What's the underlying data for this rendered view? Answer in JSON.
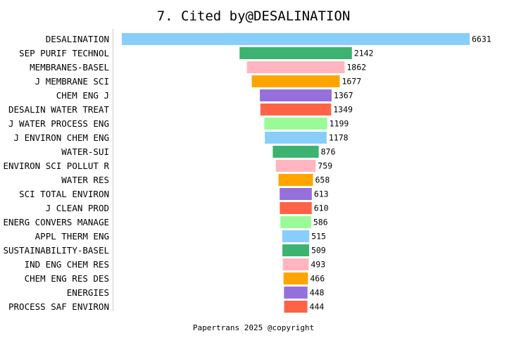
{
  "chart_data": {
    "type": "bar",
    "orientation": "horizontal-centered",
    "title": "7. Cited by@DESALINATION",
    "footer": "Papertrans 2025 @copyright",
    "categories": [
      "DESALINATION",
      "SEP PURIF TECHNOL",
      "MEMBRANES-BASEL",
      "J MEMBRANE SCI",
      "CHEM ENG J",
      "DESALIN WATER TREAT",
      "J WATER PROCESS ENG",
      "J ENVIRON CHEM ENG",
      "WATER-SUI",
      "ENVIRON SCI POLLUT R",
      "WATER RES",
      "SCI TOTAL ENVIRON",
      "J CLEAN PROD",
      "ENERG CONVERS MANAGE",
      "APPL THERM ENG",
      "SUSTAINABILITY-BASEL",
      "IND ENG CHEM RES",
      "CHEM ENG RES DES",
      "ENERGIES",
      "PROCESS SAF ENVIRON"
    ],
    "values": [
      6631,
      2142,
      1862,
      1677,
      1367,
      1349,
      1199,
      1178,
      876,
      759,
      658,
      613,
      610,
      586,
      515,
      509,
      493,
      466,
      448,
      444
    ],
    "colors": [
      "#87CEFA",
      "#3CB371",
      "#FFB6C1",
      "#FFA500",
      "#9370DB",
      "#FF6347",
      "#98FB98"
    ],
    "grid": false,
    "legend": "none"
  }
}
